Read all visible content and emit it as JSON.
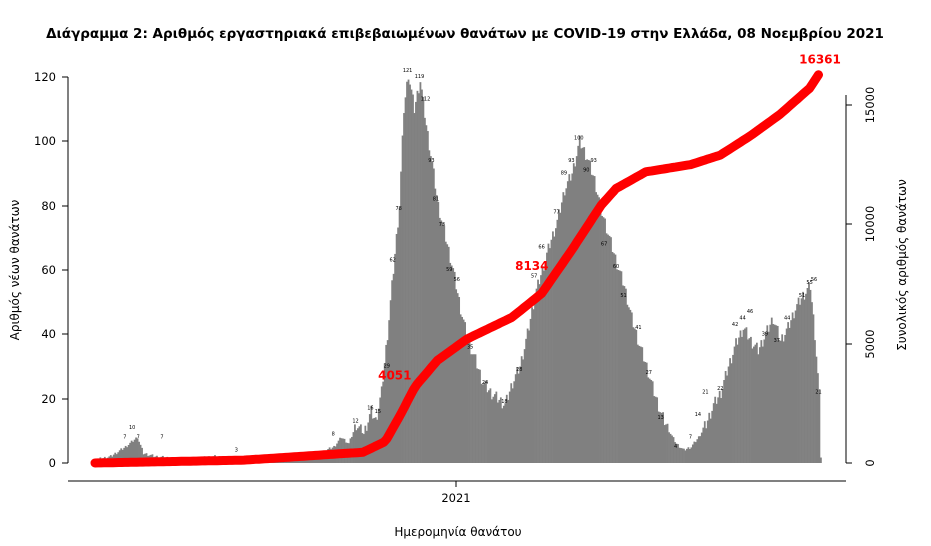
{
  "chart_data": {
    "type": "bar",
    "title": "Διάγραμμα 2: Αριθμός εργαστηριακά επιβεβαιωμένων θανάτων με COVID-19 στην Ελλάδα, 08 Νοεμβρίου 2021",
    "xlabel": "Ημερομηνία θανάτου",
    "ylabel": "Αριθμός νέων θανάτων",
    "ylabel_right": "Συνολικός αριθμός θανάτων",
    "ylim": [
      0,
      120
    ],
    "ylim_right": [
      0,
      15000
    ],
    "yticks": [
      "0",
      "20",
      "40",
      "60",
      "80",
      "100",
      "120"
    ],
    "yticks_right": [
      "0",
      "5000",
      "10000",
      "15000"
    ],
    "xticks": [
      "2021"
    ],
    "grid": false,
    "bar_color": "#808080",
    "line_color": "#ff0000",
    "anchors": [
      [
        0,
        1
      ],
      [
        10,
        2
      ],
      [
        20,
        5
      ],
      [
        28,
        8
      ],
      [
        32,
        3
      ],
      [
        40,
        2
      ],
      [
        60,
        1
      ],
      [
        80,
        2
      ],
      [
        100,
        1
      ],
      [
        120,
        2
      ],
      [
        140,
        2
      ],
      [
        150,
        3
      ],
      [
        160,
        5
      ],
      [
        165,
        8
      ],
      [
        170,
        6
      ],
      [
        175,
        12
      ],
      [
        180,
        9
      ],
      [
        185,
        16
      ],
      [
        188,
        13
      ],
      [
        192,
        22
      ],
      [
        196,
        40
      ],
      [
        200,
        60
      ],
      [
        204,
        80
      ],
      [
        207,
        110
      ],
      [
        210,
        121
      ],
      [
        214,
        110
      ],
      [
        218,
        119
      ],
      [
        222,
        105
      ],
      [
        226,
        93
      ],
      [
        230,
        80
      ],
      [
        235,
        70
      ],
      [
        240,
        60
      ],
      [
        245,
        48
      ],
      [
        250,
        38
      ],
      [
        255,
        32
      ],
      [
        260,
        25
      ],
      [
        265,
        22
      ],
      [
        270,
        20
      ],
      [
        275,
        18
      ],
      [
        280,
        25
      ],
      [
        285,
        30
      ],
      [
        290,
        40
      ],
      [
        295,
        52
      ],
      [
        300,
        60
      ],
      [
        305,
        68
      ],
      [
        310,
        75
      ],
      [
        315,
        85
      ],
      [
        320,
        90
      ],
      [
        325,
        100
      ],
      [
        330,
        95
      ],
      [
        335,
        88
      ],
      [
        340,
        78
      ],
      [
        345,
        70
      ],
      [
        350,
        62
      ],
      [
        355,
        55
      ],
      [
        360,
        45
      ],
      [
        365,
        37
      ],
      [
        370,
        30
      ],
      [
        375,
        22
      ],
      [
        380,
        15
      ],
      [
        385,
        10
      ],
      [
        390,
        6
      ],
      [
        395,
        4
      ],
      [
        400,
        5
      ],
      [
        405,
        8
      ],
      [
        410,
        12
      ],
      [
        415,
        18
      ],
      [
        420,
        22
      ],
      [
        425,
        30
      ],
      [
        430,
        37
      ],
      [
        435,
        42
      ],
      [
        440,
        38
      ],
      [
        445,
        35
      ],
      [
        450,
        40
      ],
      [
        455,
        45
      ],
      [
        460,
        38
      ],
      [
        465,
        42
      ],
      [
        470,
        48
      ],
      [
        475,
        52
      ],
      [
        480,
        55
      ],
      [
        483,
        40
      ],
      [
        486,
        21
      ],
      [
        487,
        2
      ]
    ],
    "bar_labels": [
      {
        "day": 20,
        "value": 7
      },
      {
        "day": 25,
        "value": 10
      },
      {
        "day": 29,
        "value": 7
      },
      {
        "day": 45,
        "value": 7
      },
      {
        "day": 95,
        "value": 3
      },
      {
        "day": 160,
        "value": 8
      },
      {
        "day": 175,
        "value": 12
      },
      {
        "day": 185,
        "value": 16
      },
      {
        "day": 190,
        "value": 15
      },
      {
        "day": 196,
        "value": 29
      },
      {
        "day": 200,
        "value": 62
      },
      {
        "day": 204,
        "value": 78
      },
      {
        "day": 210,
        "value": 121
      },
      {
        "day": 218,
        "value": 119
      },
      {
        "day": 222,
        "value": 112
      },
      {
        "day": 226,
        "value": 93
      },
      {
        "day": 229,
        "value": 81
      },
      {
        "day": 233,
        "value": 73
      },
      {
        "day": 238,
        "value": 59
      },
      {
        "day": 243,
        "value": 56
      },
      {
        "day": 252,
        "value": 35
      },
      {
        "day": 262,
        "value": 24
      },
      {
        "day": 275,
        "value": 18
      },
      {
        "day": 285,
        "value": 28
      },
      {
        "day": 295,
        "value": 57
      },
      {
        "day": 300,
        "value": 66
      },
      {
        "day": 310,
        "value": 77
      },
      {
        "day": 315,
        "value": 89
      },
      {
        "day": 320,
        "value": 93
      },
      {
        "day": 325,
        "value": 100
      },
      {
        "day": 330,
        "value": 90
      },
      {
        "day": 335,
        "value": 93
      },
      {
        "day": 342,
        "value": 67
      },
      {
        "day": 350,
        "value": 60
      },
      {
        "day": 355,
        "value": 51
      },
      {
        "day": 365,
        "value": 41
      },
      {
        "day": 372,
        "value": 27
      },
      {
        "day": 380,
        "value": 13
      },
      {
        "day": 390,
        "value": 4
      },
      {
        "day": 400,
        "value": 7
      },
      {
        "day": 405,
        "value": 14
      },
      {
        "day": 410,
        "value": 21
      },
      {
        "day": 420,
        "value": 22
      },
      {
        "day": 430,
        "value": 42
      },
      {
        "day": 435,
        "value": 44
      },
      {
        "day": 440,
        "value": 46
      },
      {
        "day": 450,
        "value": 39
      },
      {
        "day": 458,
        "value": 37
      },
      {
        "day": 465,
        "value": 44
      },
      {
        "day": 475,
        "value": 51
      },
      {
        "day": 480,
        "value": 55
      },
      {
        "day": 483,
        "value": 56
      },
      {
        "day": 486,
        "value": 21
      }
    ],
    "cumulative_labels": [
      {
        "day": 218,
        "text": "4051"
      },
      {
        "day": 310,
        "text": "8134"
      },
      {
        "day": 487,
        "text": "16361"
      }
    ],
    "cumulative_anchors": [
      [
        0,
        0
      ],
      [
        100,
        120
      ],
      [
        180,
        450
      ],
      [
        195,
        900
      ],
      [
        205,
        2000
      ],
      [
        215,
        3200
      ],
      [
        230,
        4300
      ],
      [
        250,
        5200
      ],
      [
        280,
        6100
      ],
      [
        300,
        7100
      ],
      [
        320,
        8900
      ],
      [
        340,
        10800
      ],
      [
        350,
        11500
      ],
      [
        370,
        12200
      ],
      [
        400,
        12500
      ],
      [
        420,
        12900
      ],
      [
        440,
        13700
      ],
      [
        460,
        14600
      ],
      [
        480,
        15700
      ],
      [
        487,
        16361
      ]
    ]
  }
}
